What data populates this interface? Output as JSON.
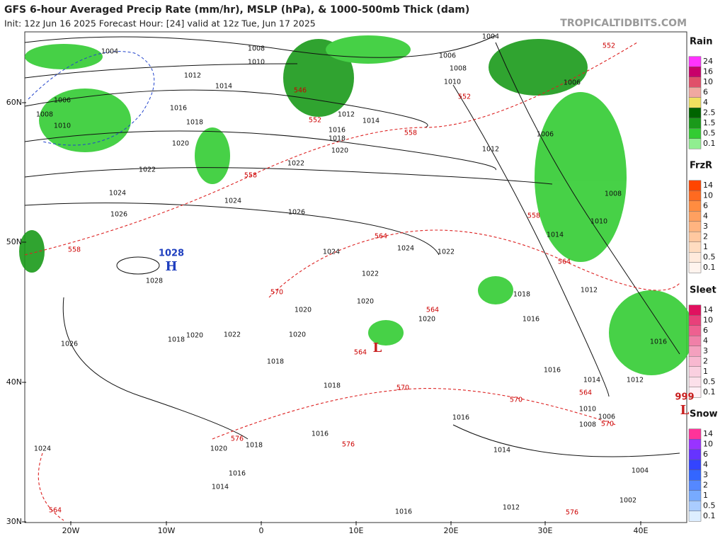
{
  "header": {
    "title": "GFS 6-hour Averaged Precip Rate (mm/hr), MSLP (hPa), & 1000-500mb Thick (dam)",
    "subtitle": "Init: 12z Jun 16 2025   Forecast Hour: [24]   valid at 12z Tue, Jun 17 2025",
    "site": "TROPICALTIDBITS.COM"
  },
  "axes": {
    "lat_labels": [
      "60N",
      "50N",
      "40N",
      "30N"
    ],
    "lon_labels": [
      "20W",
      "10W",
      "0",
      "10E",
      "20E",
      "30E",
      "40E"
    ]
  },
  "legend": [
    {
      "title": "Rain",
      "labels": [
        "24",
        "16",
        "10",
        "6",
        "4",
        "2.5",
        "1.5",
        "0.5",
        "0.1"
      ]
    },
    {
      "title": "FrzR",
      "labels": [
        "14",
        "10",
        "6",
        "4",
        "3",
        "2",
        "1",
        "0.5",
        "0.1"
      ]
    },
    {
      "title": "Sleet",
      "labels": [
        "14",
        "10",
        "6",
        "4",
        "3",
        "2",
        "1",
        "0.5",
        "0.1"
      ]
    },
    {
      "title": "Snow",
      "labels": [
        "14",
        "10",
        "6",
        "4",
        "3",
        "2",
        "1",
        "0.5",
        "0.1"
      ]
    }
  ],
  "pressure_centers": [
    {
      "value": "1028",
      "letter": "H"
    },
    {
      "letter": "L"
    },
    {
      "value": "999",
      "letter": "L"
    }
  ],
  "isobar_labels": [
    "1004",
    "1006",
    "1008",
    "1010",
    "1012",
    "1014",
    "1016",
    "1018",
    "1020",
    "1022",
    "1024",
    "1026",
    "1008",
    "1010",
    "1012",
    "1016",
    "1018",
    "1020",
    "1022",
    "1024",
    "1026",
    "1024",
    "1024",
    "1022",
    "1022",
    "1020",
    "1020",
    "1020",
    "1020",
    "1022",
    "1020",
    "1018",
    "1018",
    "1018",
    "1026",
    "1028",
    "1024",
    "1016",
    "1020",
    "1018",
    "1016",
    "1014",
    "1016",
    "1012",
    "1016",
    "1014",
    "1004",
    "1006",
    "1008",
    "1010",
    "1012",
    "1006",
    "1006",
    "1008",
    "1010",
    "1014",
    "1018",
    "1016",
    "1012",
    "1016",
    "1014",
    "1012",
    "1010",
    "1006",
    "1008",
    "1004",
    "1002",
    "1014",
    "1016"
  ],
  "thickness_labels": [
    "552",
    "546",
    "552",
    "558",
    "558",
    "558",
    "558",
    "564",
    "564",
    "564",
    "564",
    "564",
    "570",
    "570",
    "570",
    "570",
    "576",
    "576",
    "576",
    "564",
    "552"
  ]
}
